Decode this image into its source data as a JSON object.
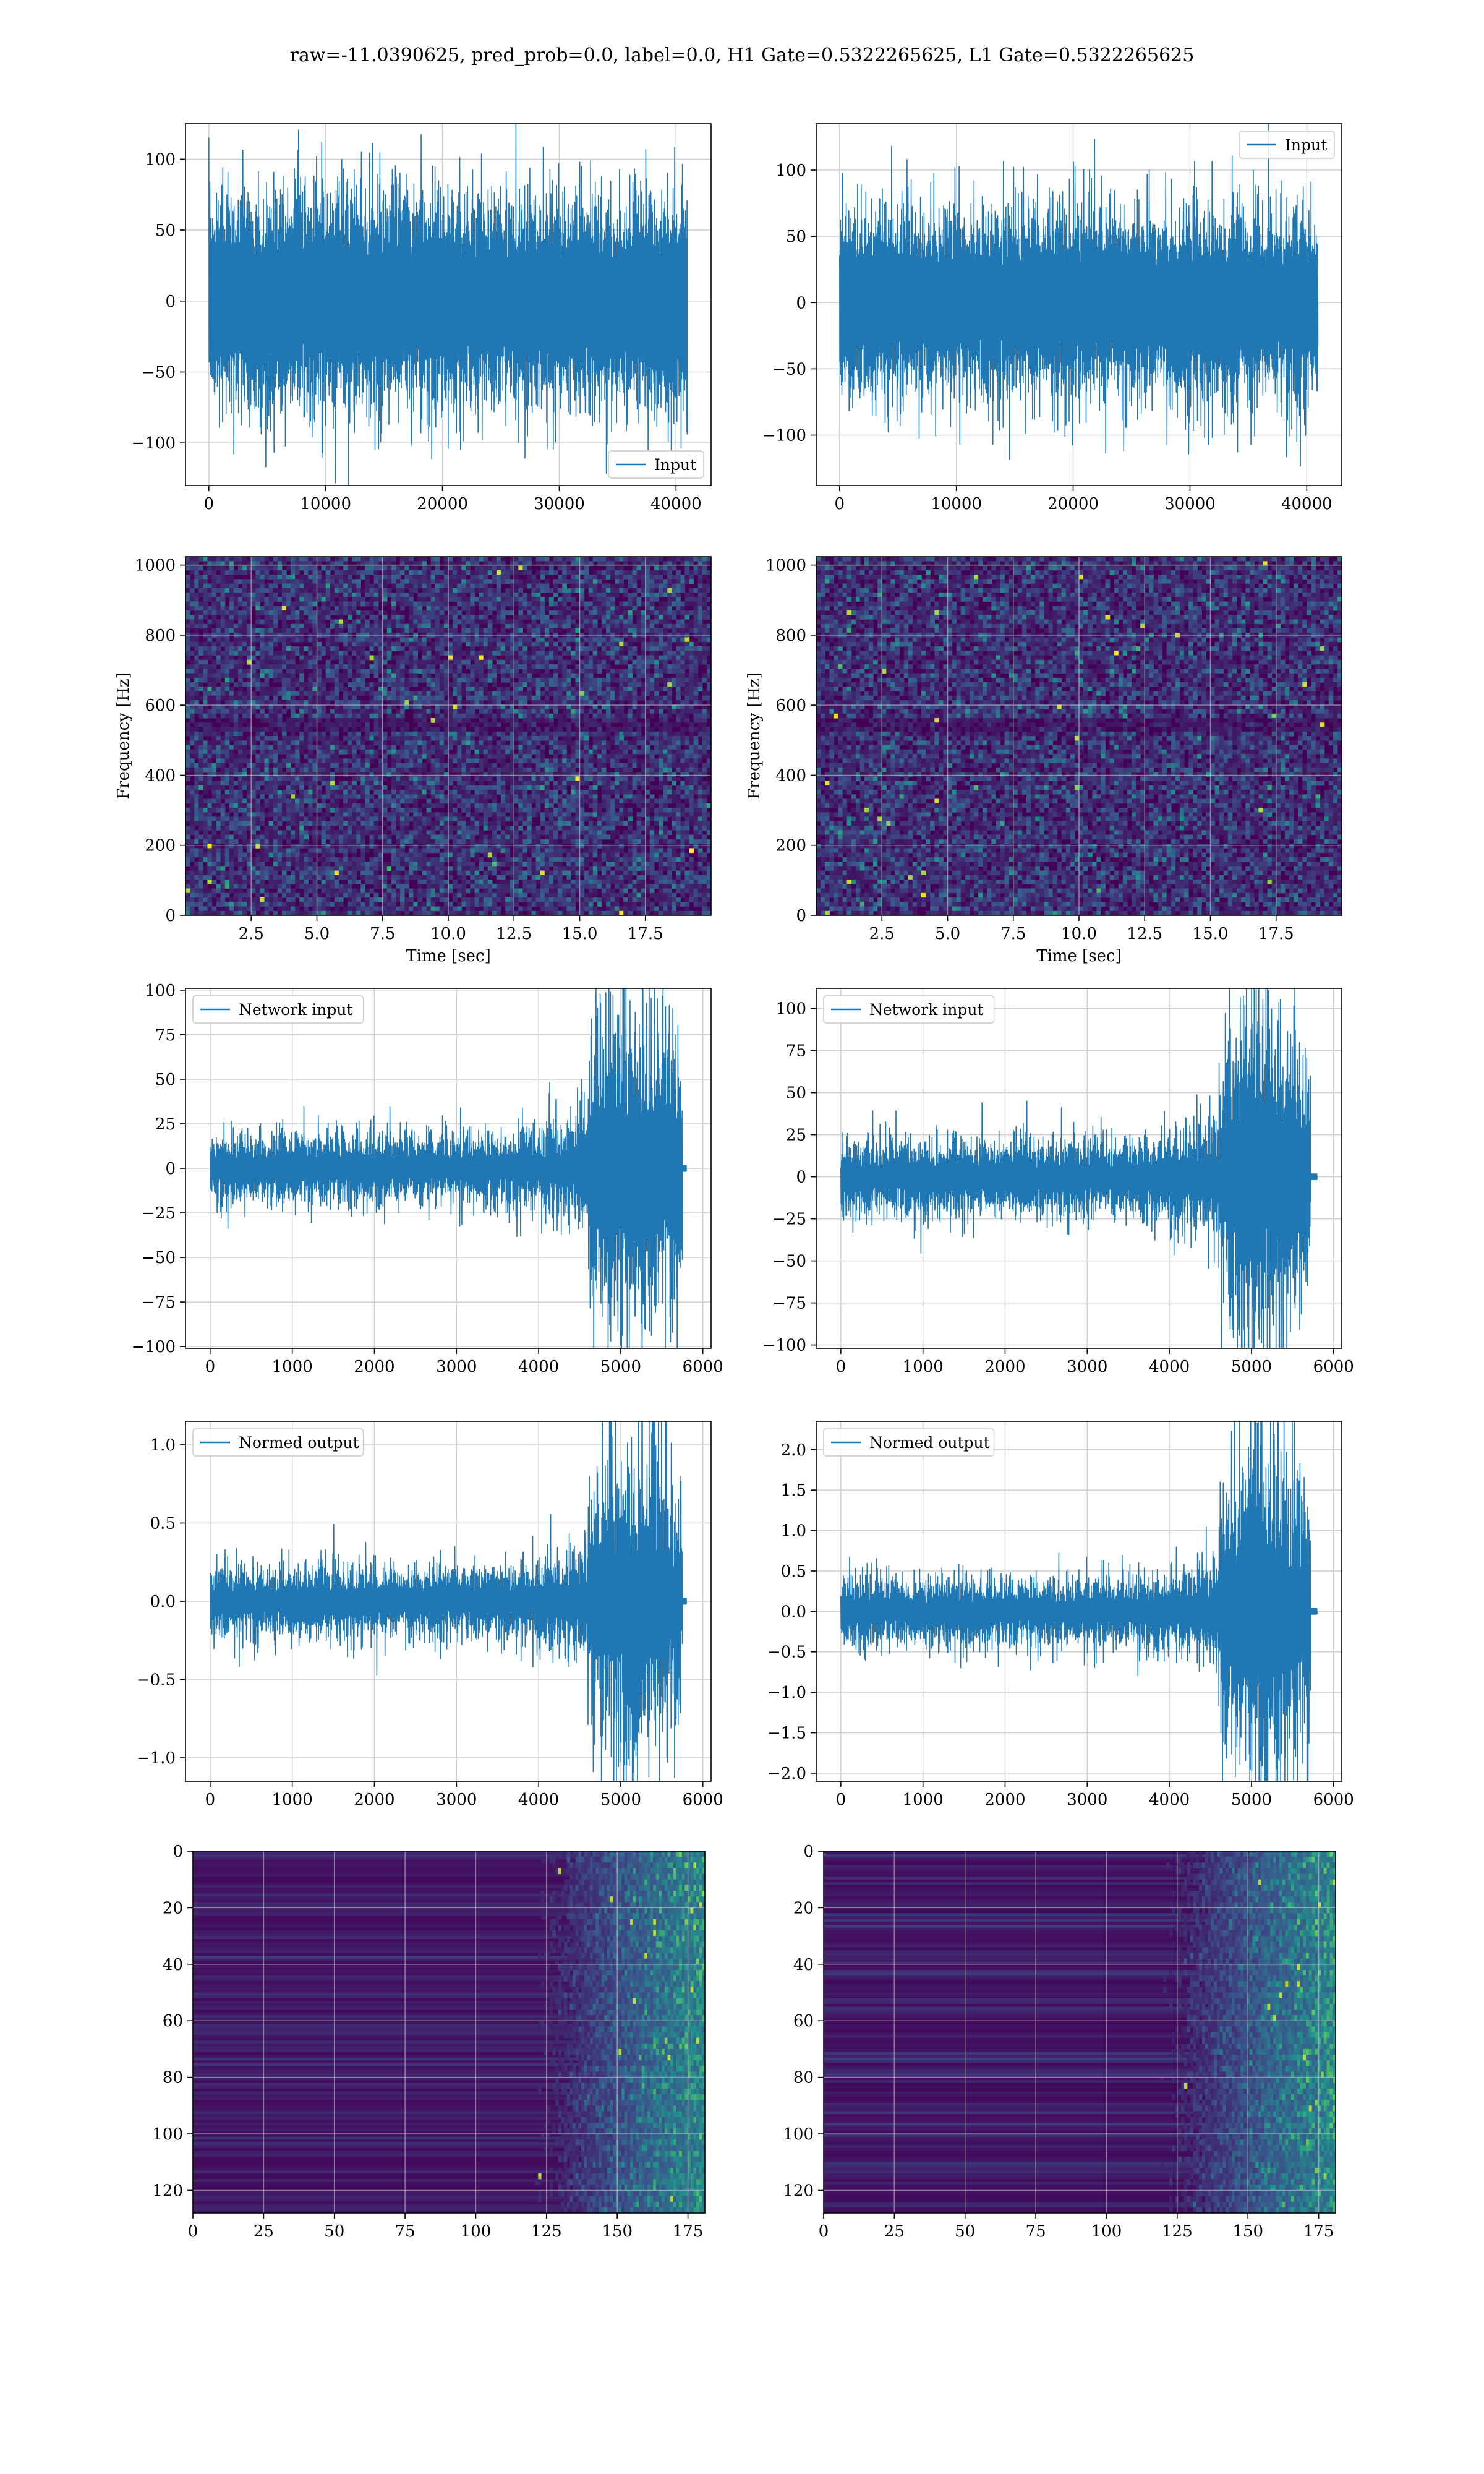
{
  "figure": {
    "title": "raw=-11.0390625, pred_prob=0.0, label=0.0, H1 Gate=0.5322265625, L1 Gate=0.5322265625"
  },
  "colors": {
    "line": "#1f77b4",
    "grid": "#d0d0d0",
    "viridis_low": "#440154",
    "viridis_high": "#fde725"
  },
  "chart_data": [
    {
      "id": "r1c1",
      "type": "line",
      "title": "",
      "xlabel": "",
      "ylabel": "",
      "xlim": [
        -2000,
        43000
      ],
      "ylim": [
        -130,
        125
      ],
      "xticks": [
        0,
        10000,
        20000,
        30000,
        40000
      ],
      "yticks": [
        -100,
        -50,
        0,
        50,
        100
      ],
      "legend": {
        "entries": [
          "Input"
        ],
        "placement": "lower-right"
      },
      "grid": true,
      "series": [
        {
          "name": "Input",
          "x_range": [
            0,
            40960
          ],
          "typical_envelope": [
            -75,
            75
          ],
          "extreme_peak": [
            -120,
            116
          ]
        }
      ]
    },
    {
      "id": "r1c2",
      "type": "line",
      "title": "",
      "xlabel": "",
      "ylabel": "",
      "xlim": [
        -2000,
        43000
      ],
      "ylim": [
        -138,
        135
      ],
      "xticks": [
        0,
        10000,
        20000,
        30000,
        40000
      ],
      "yticks": [
        -100,
        -50,
        0,
        50,
        100
      ],
      "legend": {
        "entries": [
          "Input"
        ],
        "placement": "upper-right"
      },
      "grid": true,
      "series": [
        {
          "name": "Input",
          "x_range": [
            0,
            40960
          ],
          "typical_envelope": [
            -70,
            70
          ],
          "extreme_peak": [
            -128,
            125
          ]
        }
      ]
    },
    {
      "id": "r2c1",
      "type": "heatmap",
      "title": "",
      "xlabel": "Time [sec]",
      "ylabel": "Frequency [Hz]",
      "xlim": [
        0,
        20
      ],
      "ylim": [
        0,
        1024
      ],
      "xticks": [
        "2.5",
        "5.0",
        "7.5",
        "10.0",
        "12.5",
        "15.0",
        "17.5"
      ],
      "yticks": [
        "0",
        "200",
        "400",
        "600",
        "800",
        "1000"
      ],
      "grid": true,
      "colormap": "viridis"
    },
    {
      "id": "r2c2",
      "type": "heatmap",
      "title": "",
      "xlabel": "Time [sec]",
      "ylabel": "Frequency [Hz]",
      "xlim": [
        0,
        20
      ],
      "ylim": [
        0,
        1024
      ],
      "xticks": [
        "2.5",
        "5.0",
        "7.5",
        "10.0",
        "12.5",
        "15.0",
        "17.5"
      ],
      "yticks": [
        "0",
        "200",
        "400",
        "600",
        "800",
        "1000"
      ],
      "grid": true,
      "colormap": "viridis"
    },
    {
      "id": "r3c1",
      "type": "line",
      "title": "",
      "xlabel": "",
      "ylabel": "",
      "xlim": [
        -300,
        6100
      ],
      "ylim": [
        -101,
        101
      ],
      "xticks": [
        0,
        1000,
        2000,
        3000,
        4000,
        5000,
        6000
      ],
      "yticks": [
        -100,
        -75,
        -50,
        -25,
        0,
        25,
        50,
        75,
        100
      ],
      "legend": {
        "entries": [
          "Network input"
        ],
        "placement": "upper-left"
      },
      "grid": true,
      "series": [
        {
          "name": "Network input",
          "x_range": [
            0,
            5750
          ],
          "base_amplitude": 18,
          "burst_start": 4600,
          "burst_amplitude": 90,
          "tail": [
            5750,
            5800
          ]
        }
      ]
    },
    {
      "id": "r3c2",
      "type": "line",
      "title": "",
      "xlabel": "",
      "ylabel": "",
      "xlim": [
        -300,
        6100
      ],
      "ylim": [
        -102,
        112
      ],
      "xticks": [
        0,
        1000,
        2000,
        3000,
        4000,
        5000,
        6000
      ],
      "yticks": [
        -100,
        -75,
        -50,
        -25,
        0,
        25,
        50,
        75,
        100
      ],
      "legend": {
        "entries": [
          "Network input"
        ],
        "placement": "upper-left"
      },
      "grid": true,
      "series": [
        {
          "name": "Network input",
          "x_range": [
            0,
            5720
          ],
          "base_amplitude": 20,
          "burst_start": 4600,
          "burst_amplitude": 100,
          "tail": [
            5720,
            5800
          ]
        }
      ]
    },
    {
      "id": "r4c1",
      "type": "line",
      "title": "",
      "xlabel": "",
      "ylabel": "",
      "xlim": [
        -300,
        6100
      ],
      "ylim": [
        -1.15,
        1.15
      ],
      "xticks": [
        0,
        1000,
        2000,
        3000,
        4000,
        5000,
        6000
      ],
      "yticks": [
        "-1.0",
        "-0.5",
        "0.0",
        "0.5",
        "1.0"
      ],
      "legend": {
        "entries": [
          "Normed output"
        ],
        "placement": "upper-left"
      },
      "grid": true,
      "series": [
        {
          "name": "Normed output",
          "x_range": [
            0,
            5750
          ],
          "base_amplitude": 0.2,
          "burst_start": 4600,
          "burst_amplitude": 1.02,
          "tail": [
            5750,
            5800
          ]
        }
      ]
    },
    {
      "id": "r4c2",
      "type": "line",
      "title": "",
      "xlabel": "",
      "ylabel": "",
      "xlim": [
        -300,
        6100
      ],
      "ylim": [
        -2.1,
        2.35
      ],
      "xticks": [
        0,
        1000,
        2000,
        3000,
        4000,
        5000,
        6000
      ],
      "yticks": [
        "-2.0",
        "-1.5",
        "-1.0",
        "-0.5",
        "0.0",
        "0.5",
        "1.0",
        "1.5",
        "2.0"
      ],
      "legend": {
        "entries": [
          "Normed output"
        ],
        "placement": "upper-left"
      },
      "grid": true,
      "series": [
        {
          "name": "Normed output",
          "x_range": [
            0,
            5720
          ],
          "base_amplitude": 0.38,
          "burst_start": 4600,
          "burst_amplitude": 2.1,
          "tail": [
            5720,
            5800
          ]
        }
      ]
    },
    {
      "id": "r5c1",
      "type": "heatmap",
      "title": "",
      "xlabel": "",
      "ylabel": "",
      "xlim": [
        0,
        181
      ],
      "ylim": [
        128,
        0
      ],
      "xticks": [
        "0",
        "25",
        "50",
        "75",
        "100",
        "125",
        "150",
        "175"
      ],
      "yticks": [
        "0",
        "20",
        "40",
        "60",
        "80",
        "100",
        "120"
      ],
      "grid": true,
      "colormap": "viridis",
      "active_from_x": 120
    },
    {
      "id": "r5c2",
      "type": "heatmap",
      "title": "",
      "xlabel": "",
      "ylabel": "",
      "xlim": [
        0,
        181
      ],
      "ylim": [
        128,
        0
      ],
      "xticks": [
        "0",
        "25",
        "50",
        "75",
        "100",
        "125",
        "150",
        "175"
      ],
      "yticks": [
        "0",
        "20",
        "40",
        "60",
        "80",
        "100",
        "120"
      ],
      "grid": true,
      "colormap": "viridis",
      "active_from_x": 118
    }
  ]
}
